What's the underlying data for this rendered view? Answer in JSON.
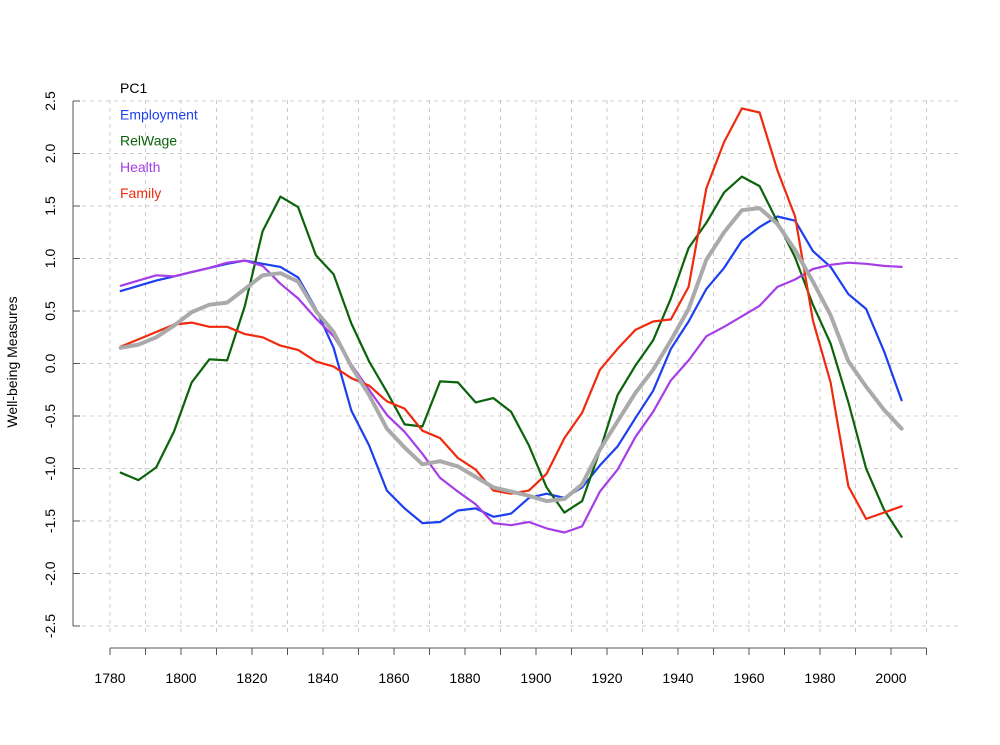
{
  "chart_data": {
    "type": "line",
    "title": "",
    "xlabel": "",
    "ylabel": "Well-being Measures",
    "xlim": [
      1780,
      2010
    ],
    "ylim": [
      -2.5,
      2.5
    ],
    "x_ticks": [
      1780,
      1800,
      1820,
      1840,
      1860,
      1880,
      1900,
      1920,
      1940,
      1960,
      1980,
      2000
    ],
    "y_ticks": [
      -2.5,
      -2.0,
      -1.5,
      -1.0,
      -0.5,
      0.0,
      0.5,
      1.0,
      1.5,
      2.0,
      2.5
    ],
    "grid": true,
    "legend_position": "top-left",
    "x": [
      1783,
      1788,
      1793,
      1798,
      1803,
      1808,
      1813,
      1818,
      1823,
      1828,
      1833,
      1838,
      1843,
      1848,
      1853,
      1858,
      1863,
      1868,
      1873,
      1878,
      1883,
      1888,
      1893,
      1898,
      1903,
      1908,
      1913,
      1918,
      1923,
      1928,
      1933,
      1938,
      1943,
      1948,
      1953,
      1958,
      1963,
      1968,
      1973,
      1978,
      1983,
      1988,
      1993,
      1998,
      2003
    ],
    "series": [
      {
        "name": "PC1",
        "color": "#aaaaaa",
        "values": [
          0.15,
          0.18,
          0.25,
          0.36,
          0.49,
          0.56,
          0.58,
          0.71,
          0.84,
          0.86,
          0.78,
          0.5,
          0.3,
          -0.03,
          -0.3,
          -0.62,
          -0.8,
          -0.96,
          -0.93,
          -0.98,
          -1.08,
          -1.18,
          -1.22,
          -1.26,
          -1.31,
          -1.29,
          -1.15,
          -0.82,
          -0.55,
          -0.28,
          -0.06,
          0.22,
          0.52,
          0.99,
          1.25,
          1.46,
          1.48,
          1.33,
          1.08,
          0.78,
          0.46,
          0.02,
          -0.22,
          -0.44,
          -0.62
        ]
      },
      {
        "name": "Employment",
        "color": "#1c3ff0",
        "values": [
          0.69,
          0.74,
          0.79,
          0.83,
          0.87,
          0.91,
          0.95,
          0.98,
          0.95,
          0.92,
          0.82,
          0.52,
          0.15,
          -0.45,
          -0.78,
          -1.21,
          -1.38,
          -1.52,
          -1.51,
          -1.4,
          -1.38,
          -1.46,
          -1.43,
          -1.28,
          -1.24,
          -1.28,
          -1.18,
          -0.97,
          -0.79,
          -0.52,
          -0.26,
          0.14,
          0.4,
          0.71,
          0.91,
          1.17,
          1.3,
          1.4,
          1.36,
          1.07,
          0.92,
          0.66,
          0.52,
          0.12,
          -0.35
        ]
      },
      {
        "name": "RelWage",
        "color": "#0b630b",
        "values": [
          -1.04,
          -1.11,
          -0.99,
          -0.65,
          -0.18,
          0.04,
          0.03,
          0.55,
          1.26,
          1.59,
          1.49,
          1.03,
          0.85,
          0.38,
          0.02,
          -0.27,
          -0.58,
          -0.6,
          -0.17,
          -0.18,
          -0.37,
          -0.33,
          -0.46,
          -0.78,
          -1.18,
          -1.42,
          -1.31,
          -0.83,
          -0.3,
          -0.02,
          0.22,
          0.62,
          1.1,
          1.34,
          1.63,
          1.78,
          1.69,
          1.35,
          1.01,
          0.56,
          0.19,
          -0.37,
          -1.0,
          -1.39,
          -1.65
        ]
      },
      {
        "name": "Health",
        "color": "#a53ee6",
        "values": [
          0.74,
          0.79,
          0.84,
          0.83,
          0.87,
          0.91,
          0.96,
          0.98,
          0.93,
          0.76,
          0.62,
          0.43,
          0.26,
          -0.01,
          -0.25,
          -0.49,
          -0.65,
          -0.86,
          -1.09,
          -1.22,
          -1.34,
          -1.52,
          -1.54,
          -1.51,
          -1.57,
          -1.61,
          -1.55,
          -1.22,
          -1.01,
          -0.7,
          -0.46,
          -0.16,
          0.03,
          0.26,
          0.35,
          0.45,
          0.55,
          0.73,
          0.8,
          0.9,
          0.94,
          0.96,
          0.95,
          0.93,
          0.92
        ]
      },
      {
        "name": "Family",
        "color": "#ef2a0e",
        "values": [
          0.16,
          0.23,
          0.3,
          0.37,
          0.39,
          0.35,
          0.35,
          0.28,
          0.25,
          0.17,
          0.13,
          0.02,
          -0.03,
          -0.14,
          -0.21,
          -0.36,
          -0.43,
          -0.64,
          -0.71,
          -0.9,
          -1.01,
          -1.21,
          -1.24,
          -1.21,
          -1.05,
          -0.71,
          -0.47,
          -0.06,
          0.14,
          0.32,
          0.4,
          0.42,
          0.73,
          1.67,
          2.11,
          2.43,
          2.39,
          1.84,
          1.4,
          0.41,
          -0.18,
          -1.17,
          -1.48,
          -1.42,
          -1.36
        ]
      }
    ]
  }
}
